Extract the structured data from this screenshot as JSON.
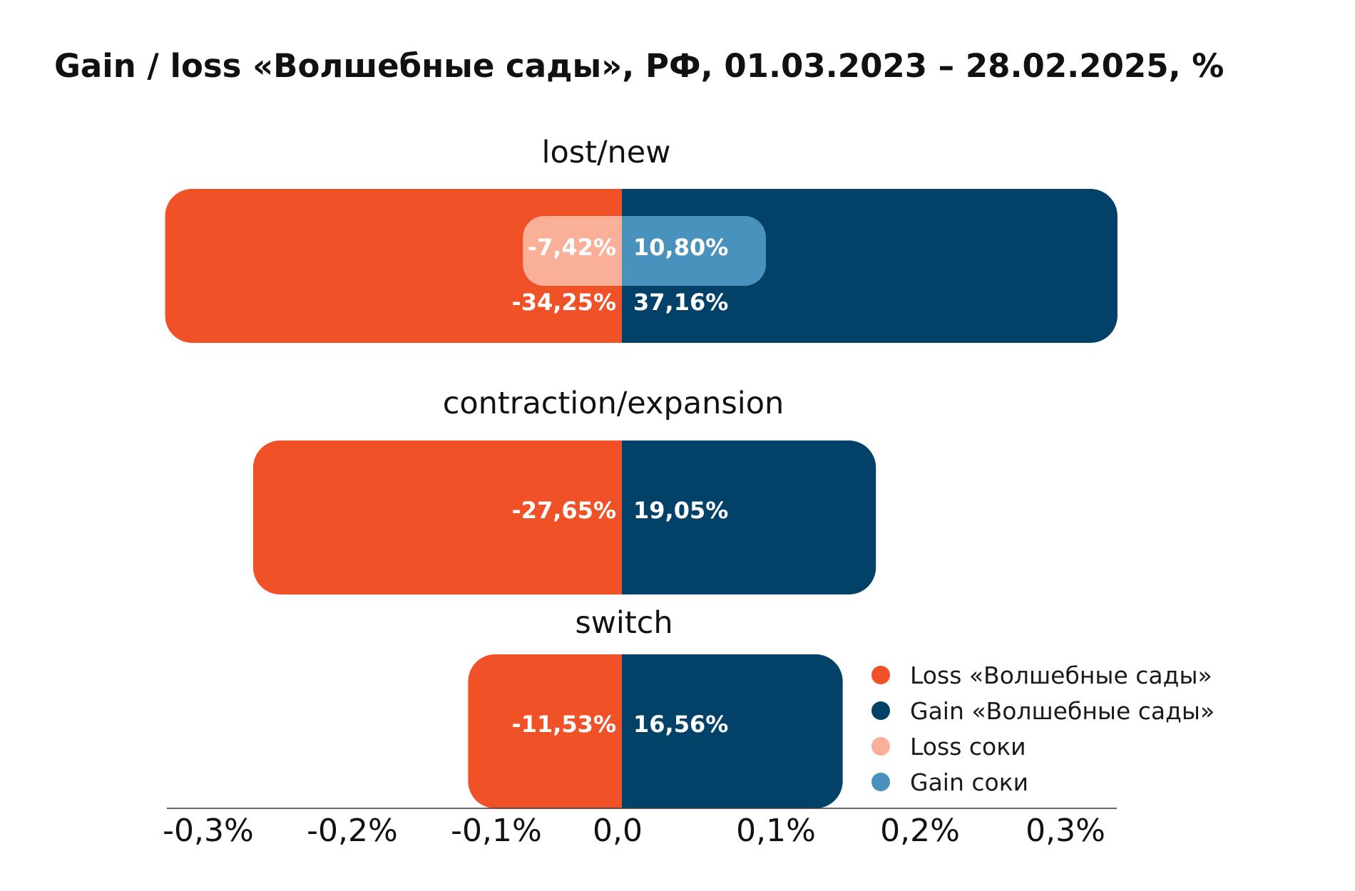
{
  "chart_data": {
    "type": "bar",
    "title": "Gain / loss «Волшебные сады», РФ, 01.03.2023 – 28.02.2025, %",
    "categories": [
      "lost/new",
      "contraction/expansion",
      "switch"
    ],
    "series": [
      {
        "name": "Loss «Волшебные сады»",
        "color": "#F05127",
        "values": [
          -34.25,
          -27.65,
          -11.53
        ],
        "labels": [
          "-34,25%",
          "-27,65%",
          "-11,53%"
        ]
      },
      {
        "name": "Gain «Волшебные сады»",
        "color": "#034268",
        "values": [
          37.16,
          19.05,
          16.56
        ],
        "labels": [
          "37,16%",
          "19,05%",
          "16,56%"
        ]
      },
      {
        "name": "Loss соки",
        "color": "#FAAF98",
        "values": [
          -7.42,
          null,
          null
        ],
        "labels": [
          "-7,42%",
          "",
          ""
        ]
      },
      {
        "name": "Gain  соки",
        "color": "#4A92BE",
        "values": [
          10.8,
          null,
          null
        ],
        "labels": [
          "10,80%",
          "",
          ""
        ]
      }
    ],
    "x_ticks": [
      "-0,3%",
      "-0,2%",
      "-0,1%",
      "0,0",
      "0,1%",
      "0,2%",
      "0,3%"
    ],
    "legend_position": "bottom-right",
    "grid": false
  }
}
